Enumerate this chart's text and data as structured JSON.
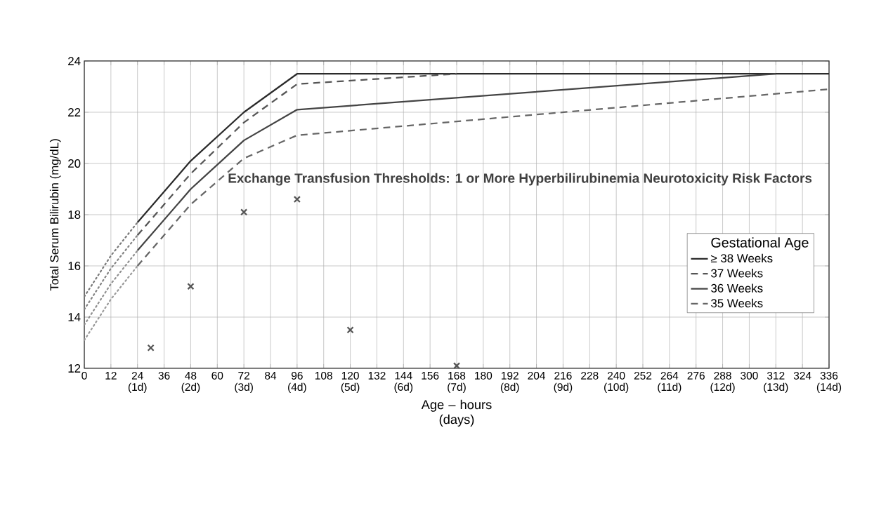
{
  "chart_data": {
    "type": "line",
    "xlabel": "Age – hours (days)",
    "ylabel": "Total Serum Bilirubin (mg/dL)",
    "legend_title": "Gestational Age",
    "annotations": [
      "Exchange Transfusion Thresholds:  1 or More Hyperbilirubinemia Neurotoxicity Risk Factors"
    ],
    "xlim": [
      0,
      336
    ],
    "ylim": [
      12,
      24
    ],
    "xticks": [
      0,
      12,
      {
        "value": 24,
        "label": "24 (1d)"
      },
      36,
      {
        "value": 48,
        "label": "48 (2d)"
      },
      60,
      {
        "value": 72,
        "label": "72 (3d)"
      },
      84,
      {
        "value": 96,
        "label": "96 (4d)"
      },
      108,
      {
        "value": 120,
        "label": "120 (5d)"
      },
      132,
      {
        "value": 144,
        "label": "144 (6d)"
      },
      156,
      {
        "value": 168,
        "label": "168 (7d)"
      },
      180,
      {
        "value": 192,
        "label": "192 (8d)"
      },
      204,
      {
        "value": 216,
        "label": "216 (9d)"
      },
      228,
      {
        "value": 240,
        "label": "240 (10d)"
      },
      252,
      {
        "value": 264,
        "label": "264 (11d)"
      },
      276,
      {
        "value": 288,
        "label": "288 (12d)"
      },
      300,
      {
        "value": 312,
        "label": "312 (13d)"
      },
      324,
      {
        "value": 336,
        "label": "336 (14d)"
      }
    ],
    "yticks": [
      12,
      14,
      16,
      18,
      20,
      22,
      24
    ],
    "grid": true,
    "legend": "right",
    "series": [
      {
        "name": "≥ 38 Weeks",
        "color": "#2b2b2b",
        "line_style": "solid",
        "x": [
          24,
          48,
          72,
          96,
          336
        ],
        "values": [
          17.7,
          20.1,
          22.0,
          23.5,
          23.5
        ]
      },
      {
        "name": "37 Weeks",
        "color": "#555555",
        "line_style": "dashed",
        "x": [
          24,
          48,
          72,
          96,
          168
        ],
        "values": [
          17.2,
          19.6,
          21.6,
          23.1,
          23.5
        ]
      },
      {
        "name": "36 Weeks",
        "color": "#444444",
        "line_style": "solid",
        "x": [
          24,
          48,
          72,
          96,
          312
        ],
        "values": [
          16.6,
          19.0,
          20.9,
          22.1,
          23.5
        ]
      },
      {
        "name": "35 Weeks",
        "color": "#666666",
        "line_style": "dashed",
        "x": [
          24,
          48,
          72,
          96,
          336
        ],
        "values": [
          16.0,
          18.4,
          20.2,
          21.1,
          22.9
        ]
      },
      {
        "color": "#7a7a7a",
        "line_style": "dotted",
        "x": [
          0,
          12,
          24
        ],
        "values": [
          14.8,
          16.4,
          17.7
        ]
      },
      {
        "color": "#858585",
        "line_style": "dotted",
        "x": [
          0,
          12,
          24
        ],
        "values": [
          14.3,
          15.9,
          17.2
        ]
      },
      {
        "color": "#909090",
        "line_style": "dotted",
        "x": [
          0,
          12,
          24
        ],
        "values": [
          13.7,
          15.3,
          16.6
        ]
      },
      {
        "color": "#9b9b9b",
        "line_style": "dotted",
        "x": [
          0,
          12,
          24
        ],
        "values": [
          13.1,
          14.7,
          16.0
        ]
      },
      {
        "type": "scatter",
        "marker": "cross",
        "color": "#555555",
        "x": [
          30,
          48,
          72,
          96,
          120,
          168
        ],
        "values": [
          12.8,
          15.2,
          18.1,
          18.6,
          13.5,
          12.1
        ]
      }
    ]
  }
}
